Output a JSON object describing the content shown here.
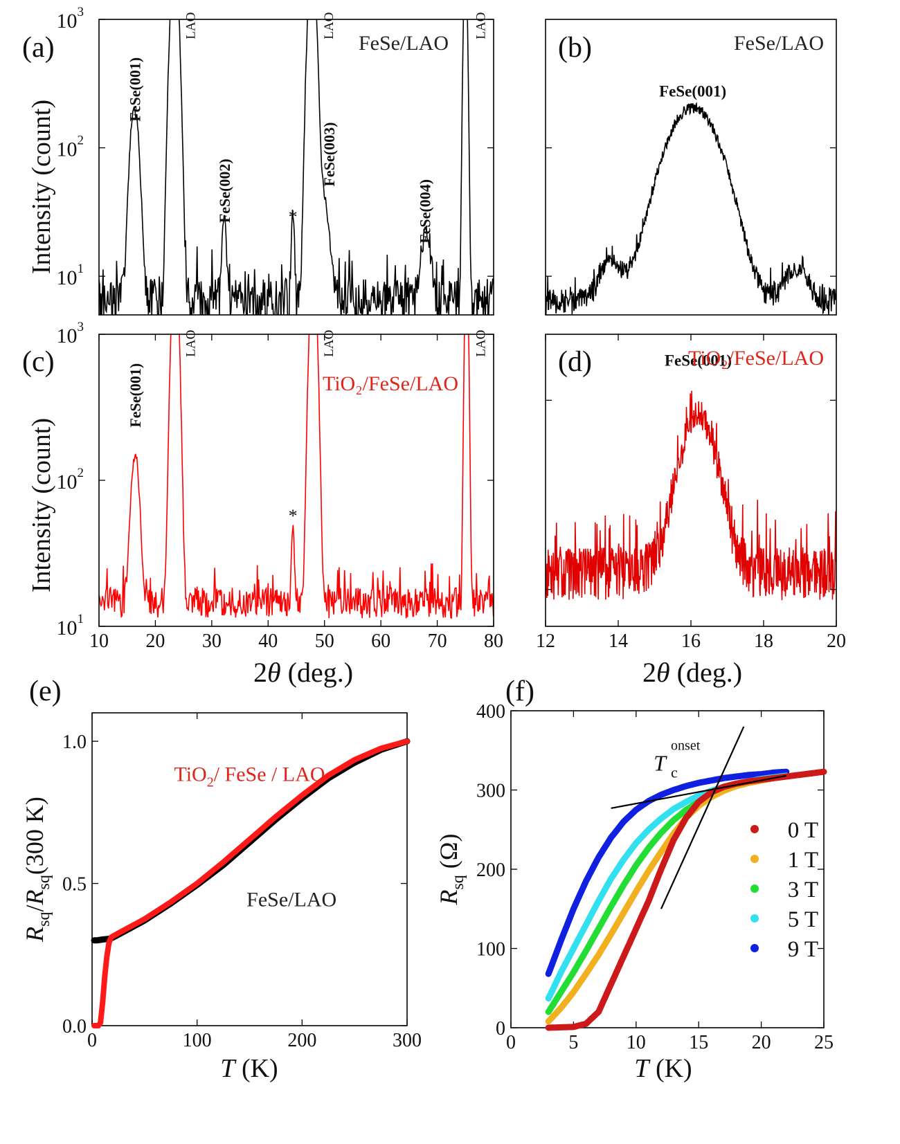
{
  "chart_data": [
    {
      "id": "a",
      "panel_label": "(a)",
      "type": "line",
      "yscale": "log",
      "title": "FeSe/LAO",
      "title_color": "#222222",
      "color": "#000000",
      "xlabel": "",
      "ylabel": "Intensity (count)",
      "xlim": [
        10,
        80
      ],
      "ylim": [
        5,
        1000
      ],
      "xticks": [],
      "xtick_labels": [],
      "yticks": [
        10,
        100,
        1000
      ],
      "ytick_labels": [
        [
          "10",
          "1"
        ],
        [
          "10",
          "2"
        ],
        [
          "10",
          "3"
        ]
      ],
      "noise": {
        "base": 6.5,
        "spread": 2.8,
        "dx": 0.12
      },
      "peaks": [
        {
          "center": 16.3,
          "height": 200,
          "width": 0.65,
          "label": "FeSe(001)",
          "label_x": 16.3,
          "label_y": 160,
          "label_rot": true,
          "bold": true
        },
        {
          "center": 23.4,
          "height": 3000,
          "width": 0.55,
          "label": "LAO",
          "label_x": 26.0,
          "label_y": 700,
          "label_rot": true,
          "bold": false
        },
        {
          "center": 32.2,
          "height": 22,
          "width": 0.3,
          "label": "FeSe(002)",
          "label_x": 32.2,
          "label_y": 26,
          "label_rot": true,
          "bold": true
        },
        {
          "center": 44.4,
          "height": 24,
          "width": 0.22,
          "label": "*",
          "label_x": 44.4,
          "label_y": 26,
          "label_rot": false,
          "bold": false
        },
        {
          "center": 47.8,
          "height": 3000,
          "width": 0.55,
          "label": "LAO",
          "label_x": 50.5,
          "label_y": 700,
          "label_rot": true,
          "bold": false
        },
        {
          "center": 49.5,
          "height": 40,
          "width": 0.9,
          "label": "FeSe(003)",
          "label_x": 50.8,
          "label_y": 50,
          "label_rot": true,
          "bold": true
        },
        {
          "center": 68.0,
          "height": 16,
          "width": 0.7,
          "label": "FeSe(004)",
          "label_x": 67.8,
          "label_y": 18,
          "label_rot": true,
          "bold": true
        },
        {
          "center": 75.0,
          "height": 3000,
          "width": 0.25,
          "label": "LAO",
          "label_x": 77.5,
          "label_y": 700,
          "label_rot": true,
          "bold": false
        }
      ]
    },
    {
      "id": "b",
      "panel_label": "(b)",
      "type": "line",
      "yscale": "log",
      "title": "FeSe/LAO",
      "title_color": "#222222",
      "color": "#000000",
      "xlabel": "",
      "ylabel": "",
      "xlim": [
        12,
        20
      ],
      "ylim": [
        5,
        1000
      ],
      "xticks": [],
      "xtick_labels": [],
      "yticks": [
        10,
        100
      ],
      "ytick_labels": [],
      "noise": {
        "base": 6.3,
        "spread": 1.6,
        "dx": 0.012
      },
      "peaks": [
        {
          "center": 16.05,
          "height": 200,
          "width": 0.62,
          "label": "FeSe(001)",
          "label_x": 16.05,
          "label_y": 250,
          "label_rot": false,
          "bold": true
        },
        {
          "center": 13.8,
          "height": 6.5,
          "width": 0.28,
          "label": "",
          "label_x": 0,
          "label_y": 0,
          "label_rot": false,
          "bold": false
        },
        {
          "center": 18.9,
          "height": 5,
          "width": 0.3,
          "label": "",
          "label_x": 0,
          "label_y": 0,
          "label_rot": false,
          "bold": false
        }
      ]
    },
    {
      "id": "c",
      "panel_label": "(c)",
      "type": "line",
      "yscale": "log",
      "title": "TiO₂/FeSe/LAO",
      "title_color": "#e0241b",
      "color": "#ff0000",
      "xlabel": "2θ (deg.)",
      "ylabel": "Intensity (count)",
      "xlim": [
        10,
        80
      ],
      "ylim": [
        10,
        1000
      ],
      "xticks": [
        10,
        20,
        30,
        40,
        50,
        60,
        70,
        80
      ],
      "xtick_labels": [
        "10",
        "20",
        "30",
        "40",
        "50",
        "60",
        "70",
        "80"
      ],
      "yticks": [
        10,
        100,
        1000
      ],
      "ytick_labels": [
        [
          "10",
          "1"
        ],
        [
          "10",
          "2"
        ],
        [
          "10",
          "3"
        ]
      ],
      "noise": {
        "base": 14.5,
        "spread": 3.5,
        "dx": 0.12
      },
      "peaks": [
        {
          "center": 16.4,
          "height": 140,
          "width": 0.6,
          "label": "FeSe(001)",
          "label_x": 16.4,
          "label_y": 230,
          "label_rot": true,
          "bold": true
        },
        {
          "center": 23.5,
          "height": 3000,
          "width": 0.5,
          "label": "LAO",
          "label_x": 26.0,
          "label_y": 700,
          "label_rot": true,
          "bold": false
        },
        {
          "center": 44.4,
          "height": 36,
          "width": 0.2,
          "label": "*",
          "label_x": 44.4,
          "label_y": 52,
          "label_rot": false,
          "bold": false
        },
        {
          "center": 48.0,
          "height": 3000,
          "width": 0.5,
          "label": "LAO",
          "label_x": 50.5,
          "label_y": 700,
          "label_rot": true,
          "bold": false
        },
        {
          "center": 75.2,
          "height": 3000,
          "width": 0.25,
          "label": "LAO",
          "label_x": 77.5,
          "label_y": 700,
          "label_rot": true,
          "bold": false
        }
      ]
    },
    {
      "id": "d",
      "panel_label": "(d)",
      "type": "line",
      "yscale": "log",
      "title": "TiO₂/FeSe/LAO",
      "title_color": "#e0241b",
      "color": "#e00000",
      "xlabel": "2θ (deg.)",
      "ylabel": "",
      "xlim": [
        12,
        20
      ],
      "ylim": [
        1,
        8
      ],
      "xticks": [
        12,
        14,
        16,
        18,
        20
      ],
      "xtick_labels": [
        "12",
        "14",
        "16",
        "18",
        "20"
      ],
      "yticks": [
        1.3,
        5
      ],
      "ytick_labels": [],
      "noise": {
        "base": 1.45,
        "spread": 0.28,
        "dx": 0.012
      },
      "peaks": [
        {
          "center": 16.2,
          "height": 3.0,
          "width": 0.5,
          "label": "FeSe(001)",
          "label_x": 16.2,
          "label_y": 6.4,
          "label_rot": false,
          "bold": true
        }
      ]
    },
    {
      "id": "e",
      "panel_label": "(e)",
      "type": "line",
      "xlabel": "T (K)",
      "ylabel": "R_sq/R_sq(300 K)",
      "xlim": [
        0,
        300
      ],
      "ylim": [
        0,
        1.1
      ],
      "xticks": [
        0,
        100,
        200,
        300
      ],
      "xtick_labels": [
        "0",
        "100",
        "200",
        "300"
      ],
      "yticks": [
        0.0,
        0.5,
        1.0
      ],
      "ytick_labels": [
        "0.0",
        "0.5",
        "1.0"
      ],
      "series": [
        {
          "name": "FeSe/LAO",
          "color": "#000000",
          "x": [
            2,
            5,
            10,
            15,
            18,
            20,
            30,
            40,
            50,
            75,
            100,
            125,
            150,
            175,
            200,
            225,
            250,
            275,
            300
          ],
          "y": [
            0.3,
            0.3,
            0.303,
            0.305,
            0.307,
            0.31,
            0.33,
            0.35,
            0.37,
            0.43,
            0.495,
            0.565,
            0.645,
            0.725,
            0.8,
            0.87,
            0.925,
            0.97,
            1.0
          ]
        },
        {
          "name": "TiO₂/ FeSe / LAO",
          "color": "#ff1a1a",
          "x": [
            2,
            6,
            8,
            10,
            12,
            14,
            16,
            18,
            20,
            30,
            40,
            50,
            75,
            100,
            125,
            150,
            175,
            200,
            225,
            250,
            275,
            300
          ],
          "y": [
            0,
            0,
            0.01,
            0.08,
            0.17,
            0.24,
            0.29,
            0.31,
            0.315,
            0.335,
            0.355,
            0.375,
            0.435,
            0.5,
            0.575,
            0.655,
            0.735,
            0.81,
            0.88,
            0.935,
            0.975,
            1.0
          ]
        }
      ],
      "annotations": [
        {
          "text": "TiO₂/ FeSe / LAO",
          "color": "#e0241b",
          "x": 150,
          "y": 0.86
        },
        {
          "text": "FeSe/LAO",
          "color": "#222222",
          "x": 190,
          "y": 0.42
        }
      ]
    },
    {
      "id": "f",
      "panel_label": "(f)",
      "type": "scatter",
      "xlabel": "T (K)",
      "ylabel": "R_sq (Ω)",
      "xlim": [
        0,
        25
      ],
      "ylim": [
        0,
        400
      ],
      "xticks": [
        0,
        5,
        10,
        15,
        20,
        25
      ],
      "xtick_labels": [
        "0",
        "5",
        "10",
        "15",
        "20",
        "25"
      ],
      "yticks": [
        0,
        100,
        200,
        300,
        400
      ],
      "ytick_labels": [
        "0",
        "100",
        "200",
        "300",
        "400"
      ],
      "series": [
        {
          "name": "0 T",
          "color": "#cc1a1a",
          "x": [
            3,
            5,
            6,
            7,
            8,
            9,
            10,
            11,
            12,
            13,
            14,
            15,
            16,
            17,
            18,
            19,
            20,
            21,
            22,
            23,
            24,
            25
          ],
          "y": [
            0,
            1,
            5,
            20,
            55,
            90,
            125,
            160,
            200,
            237,
            265,
            285,
            297,
            304,
            308,
            311,
            313,
            315,
            317,
            319,
            321,
            323
          ]
        },
        {
          "name": "1 T",
          "color": "#f0b020",
          "x": [
            3,
            4,
            5,
            6,
            7,
            8,
            9,
            10,
            11,
            12,
            13,
            14,
            15,
            16,
            17,
            18,
            19,
            20,
            21,
            22
          ],
          "y": [
            8,
            25,
            45,
            68,
            92,
            118,
            145,
            172,
            198,
            222,
            245,
            265,
            280,
            291,
            299,
            305,
            309,
            312,
            315,
            317
          ]
        },
        {
          "name": "3 T",
          "color": "#22dd33",
          "x": [
            3,
            4,
            5,
            6,
            7,
            8,
            9,
            10,
            11,
            12,
            13,
            14,
            15,
            16,
            17,
            18,
            19,
            20,
            21,
            22
          ],
          "y": [
            20,
            45,
            70,
            97,
            125,
            153,
            180,
            205,
            227,
            246,
            262,
            275,
            285,
            293,
            300,
            305,
            309,
            312,
            315,
            317
          ]
        },
        {
          "name": "5 T",
          "color": "#33e0f0",
          "x": [
            3,
            4,
            5,
            6,
            7,
            8,
            9,
            10,
            11,
            12,
            13,
            14,
            15,
            16,
            17,
            18,
            19,
            20,
            21,
            22
          ],
          "y": [
            37,
            70,
            100,
            130,
            160,
            188,
            212,
            233,
            250,
            264,
            276,
            285,
            293,
            299,
            304,
            308,
            311,
            314,
            316,
            318
          ]
        },
        {
          "name": "9 T",
          "color": "#1020e0",
          "x": [
            3,
            4,
            5,
            6,
            7,
            8,
            9,
            10,
            11,
            12,
            13,
            14,
            15,
            16,
            17,
            18,
            19,
            20,
            21,
            22
          ],
          "y": [
            68,
            110,
            150,
            185,
            215,
            240,
            260,
            275,
            286,
            294,
            300,
            305,
            309,
            312,
            315,
            317,
            319,
            320,
            322,
            323
          ]
        }
      ],
      "fit_lines": [
        {
          "x": [
            8,
            22
          ],
          "y": [
            277,
            318
          ]
        },
        {
          "x": [
            12,
            18.6
          ],
          "y": [
            150,
            380
          ]
        }
      ],
      "annotation": {
        "base": "T",
        "sub": "c",
        "sup": "onset",
        "x": 13.0,
        "y": 340
      }
    }
  ]
}
